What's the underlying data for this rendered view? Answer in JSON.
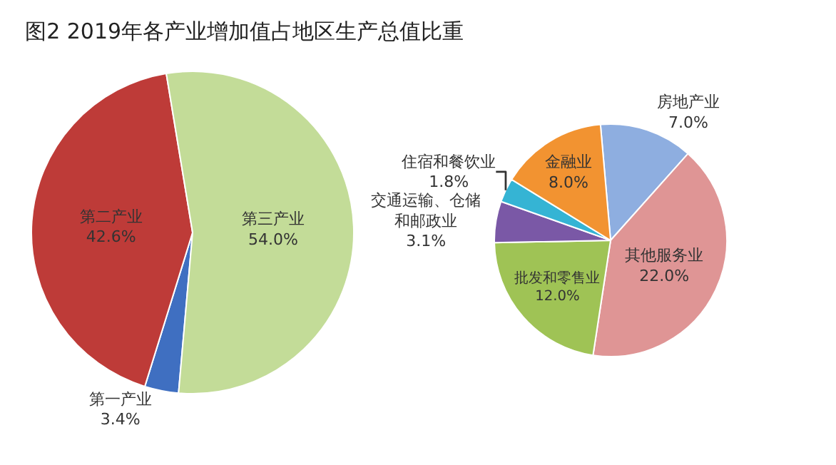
{
  "chart_data": [
    {
      "type": "pie",
      "title": "图2 2019年各产业增加值占地区生产总值比重",
      "categories": [
        "第一产业",
        "第二产业",
        "第三产业"
      ],
      "values": [
        3.4,
        42.6,
        54.0
      ],
      "value_labels": [
        "3.4%",
        "42.6%",
        "54.0%"
      ],
      "colors": [
        "#3f6fc1",
        "#be3b38",
        "#c3dc98"
      ]
    },
    {
      "type": "pie",
      "categories": [
        "房地产业",
        "其他服务业",
        "批发和零售业",
        "交通运输、仓储和邮政业",
        "住宿和餐饮业",
        "金融业"
      ],
      "values": [
        7.0,
        22.0,
        12.0,
        3.1,
        1.8,
        8.0
      ],
      "value_labels": [
        "7.0%",
        "22.0%",
        "12.0%",
        "3.1%",
        "1.8%",
        "8.0%"
      ],
      "colors": [
        "#8eaee0",
        "#df9595",
        "#9fc355",
        "#7a58a6",
        "#35b4d4",
        "#f29331"
      ]
    }
  ]
}
